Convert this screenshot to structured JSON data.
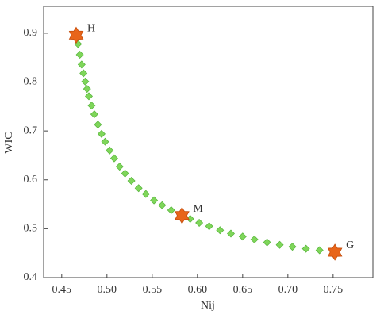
{
  "chart_data": {
    "type": "scatter",
    "x_label": "Nij",
    "y_label": "WIC",
    "xlim": [
      0.43,
      0.794
    ],
    "ylim": [
      0.4,
      0.955
    ],
    "xticks": [
      0.45,
      {
        "value": 0.5,
        "label": "0.50"
      },
      0.55,
      {
        "value": 0.6,
        "label": "0.60"
      },
      0.65,
      {
        "value": 0.7,
        "label": "0.70"
      },
      0.75
    ],
    "yticks": [
      0.4,
      0.5,
      0.6,
      0.7,
      0.8,
      0.9
    ],
    "series": [
      {
        "color": "#7fd65a",
        "marker": "diamond",
        "x": [
          0.468,
          0.47,
          0.472,
          0.474,
          0.476,
          0.478,
          0.48,
          0.483,
          0.486,
          0.49,
          0.494,
          0.498,
          0.503,
          0.508,
          0.514,
          0.52,
          0.527,
          0.535,
          0.543,
          0.552,
          0.561,
          0.571,
          0.592,
          0.602,
          0.613,
          0.625,
          0.637,
          0.65,
          0.663,
          0.677,
          0.691,
          0.705,
          0.72,
          0.735
        ],
        "y": [
          0.878,
          0.856,
          0.836,
          0.818,
          0.801,
          0.786,
          0.771,
          0.752,
          0.734,
          0.713,
          0.694,
          0.678,
          0.66,
          0.644,
          0.627,
          0.613,
          0.598,
          0.583,
          0.571,
          0.558,
          0.548,
          0.538,
          0.52,
          0.512,
          0.505,
          0.497,
          0.49,
          0.484,
          0.478,
          0.472,
          0.467,
          0.463,
          0.459,
          0.456
        ]
      },
      {
        "color": "#e8651a",
        "marker": "star",
        "x": [
          0.466,
          0.583,
          0.752
        ],
        "y": [
          0.896,
          0.527,
          0.452
        ],
        "labels": [
          "H",
          "M",
          "G"
        ]
      }
    ]
  }
}
